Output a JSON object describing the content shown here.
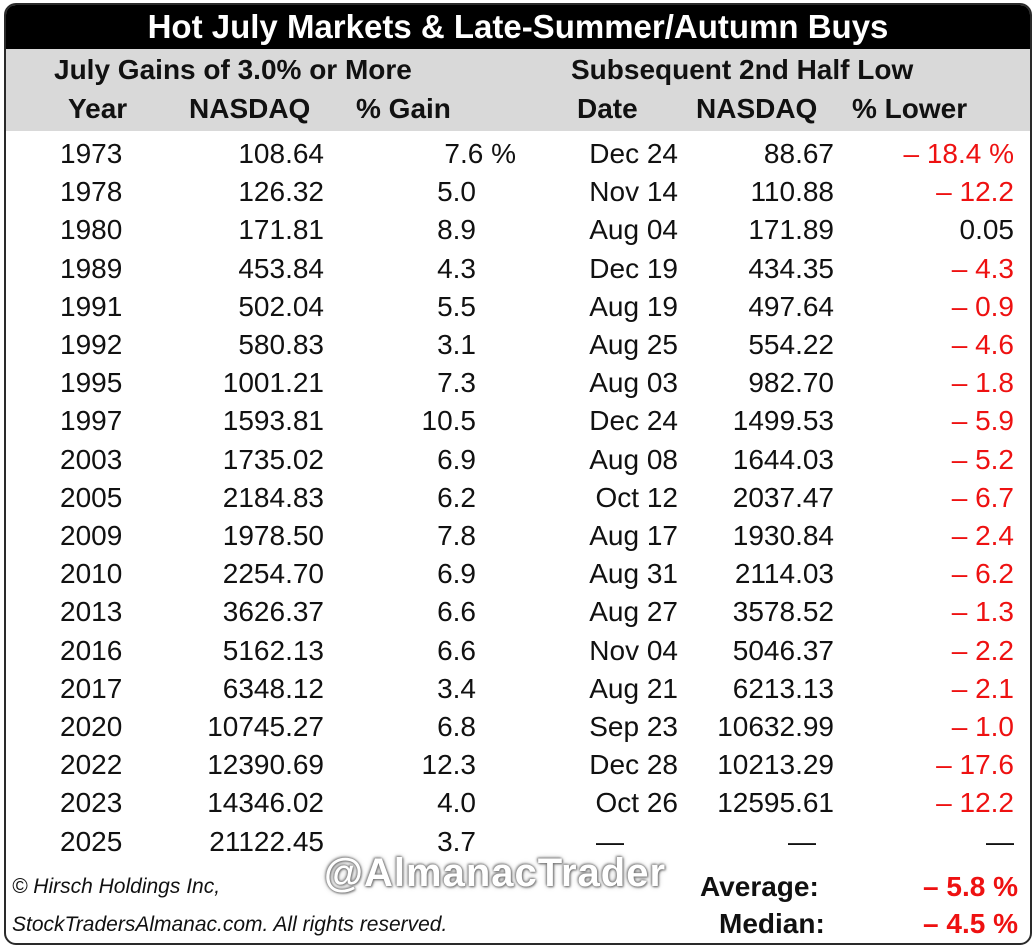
{
  "title": "Hot July Markets & Late-Summer/Autumn Buys",
  "group_left": "July Gains of 3.0% or More",
  "group_right": "Subsequent 2nd Half Low",
  "columns": {
    "year": "Year",
    "nasdaq": "NASDAQ",
    "gain": "% Gain",
    "date": "Date",
    "low_nasdaq": "NASDAQ",
    "lower": "% Lower"
  },
  "rows": [
    {
      "year": "1973",
      "nasdaq": "108.64",
      "gain": "7.6 %",
      "date": "Dec 24",
      "low": "88.67",
      "lower": "– 18.4 %",
      "neg": true
    },
    {
      "year": "1978",
      "nasdaq": "126.32",
      "gain": "5.0",
      "date": "Nov 14",
      "low": "110.88",
      "lower": "– 12.2",
      "neg": true
    },
    {
      "year": "1980",
      "nasdaq": "171.81",
      "gain": "8.9",
      "date": "Aug 04",
      "low": "171.89",
      "lower": "0.05",
      "neg": false
    },
    {
      "year": "1989",
      "nasdaq": "453.84",
      "gain": "4.3",
      "date": "Dec 19",
      "low": "434.35",
      "lower": "– 4.3",
      "neg": true
    },
    {
      "year": "1991",
      "nasdaq": "502.04",
      "gain": "5.5",
      "date": "Aug 19",
      "low": "497.64",
      "lower": "– 0.9",
      "neg": true
    },
    {
      "year": "1992",
      "nasdaq": "580.83",
      "gain": "3.1",
      "date": "Aug 25",
      "low": "554.22",
      "lower": "– 4.6",
      "neg": true
    },
    {
      "year": "1995",
      "nasdaq": "1001.21",
      "gain": "7.3",
      "date": "Aug 03",
      "low": "982.70",
      "lower": "– 1.8",
      "neg": true
    },
    {
      "year": "1997",
      "nasdaq": "1593.81",
      "gain": "10.5",
      "date": "Dec 24",
      "low": "1499.53",
      "lower": "– 5.9",
      "neg": true
    },
    {
      "year": "2003",
      "nasdaq": "1735.02",
      "gain": "6.9",
      "date": "Aug 08",
      "low": "1644.03",
      "lower": "– 5.2",
      "neg": true
    },
    {
      "year": "2005",
      "nasdaq": "2184.83",
      "gain": "6.2",
      "date": "Oct 12",
      "low": "2037.47",
      "lower": "– 6.7",
      "neg": true
    },
    {
      "year": "2009",
      "nasdaq": "1978.50",
      "gain": "7.8",
      "date": "Aug 17",
      "low": "1930.84",
      "lower": "– 2.4",
      "neg": true
    },
    {
      "year": "2010",
      "nasdaq": "2254.70",
      "gain": "6.9",
      "date": "Aug 31",
      "low": "2114.03",
      "lower": "– 6.2",
      "neg": true
    },
    {
      "year": "2013",
      "nasdaq": "3626.37",
      "gain": "6.6",
      "date": "Aug 27",
      "low": "3578.52",
      "lower": "– 1.3",
      "neg": true
    },
    {
      "year": "2016",
      "nasdaq": "5162.13",
      "gain": "6.6",
      "date": "Nov 04",
      "low": "5046.37",
      "lower": "– 2.2",
      "neg": true
    },
    {
      "year": "2017",
      "nasdaq": "6348.12",
      "gain": "3.4",
      "date": "Aug 21",
      "low": "6213.13",
      "lower": "– 2.1",
      "neg": true
    },
    {
      "year": "2020",
      "nasdaq": "10745.27",
      "gain": "6.8",
      "date": "Sep 23",
      "low": "10632.99",
      "lower": "– 1.0",
      "neg": true
    },
    {
      "year": "2022",
      "nasdaq": "12390.69",
      "gain": "12.3",
      "date": "Dec 28",
      "low": "10213.29",
      "lower": "– 17.6",
      "neg": true
    },
    {
      "year": "2023",
      "nasdaq": "14346.02",
      "gain": "4.0",
      "date": "Oct 26",
      "low": "12595.61",
      "lower": "– 12.2",
      "neg": true
    },
    {
      "year": "2025",
      "nasdaq": "21122.45",
      "gain": "3.7",
      "date": "—",
      "low": "—",
      "lower": "—",
      "neg": false
    }
  ],
  "footer": {
    "copyright_line1": "© Hirsch Holdings Inc,",
    "copyright_line2": "StockTradersAlmanac.com. All rights reserved.",
    "watermark": "@AlmanacTrader",
    "average_label": "Average:",
    "average_value": "– 5.8 %",
    "median_label": "Median:",
    "median_value": "– 4.5 %"
  },
  "colors": {
    "negative": "#ee1111",
    "header_band": "#d9d9d9",
    "title_band": "#000000"
  }
}
